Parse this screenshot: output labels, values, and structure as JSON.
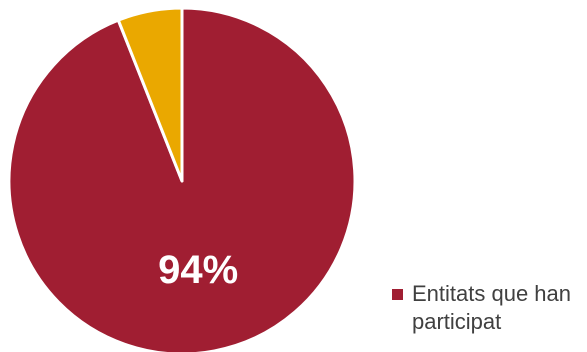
{
  "chart_data": {
    "type": "pie",
    "slices": [
      {
        "value": 94,
        "color": "#A01E32",
        "data_label": "94%"
      },
      {
        "value": 6,
        "color": "#EAA800",
        "data_label": ""
      }
    ],
    "legend": [
      {
        "label": "Entitats que han participat",
        "color": "#A01E32"
      }
    ],
    "legend_position": "bottom-right"
  }
}
